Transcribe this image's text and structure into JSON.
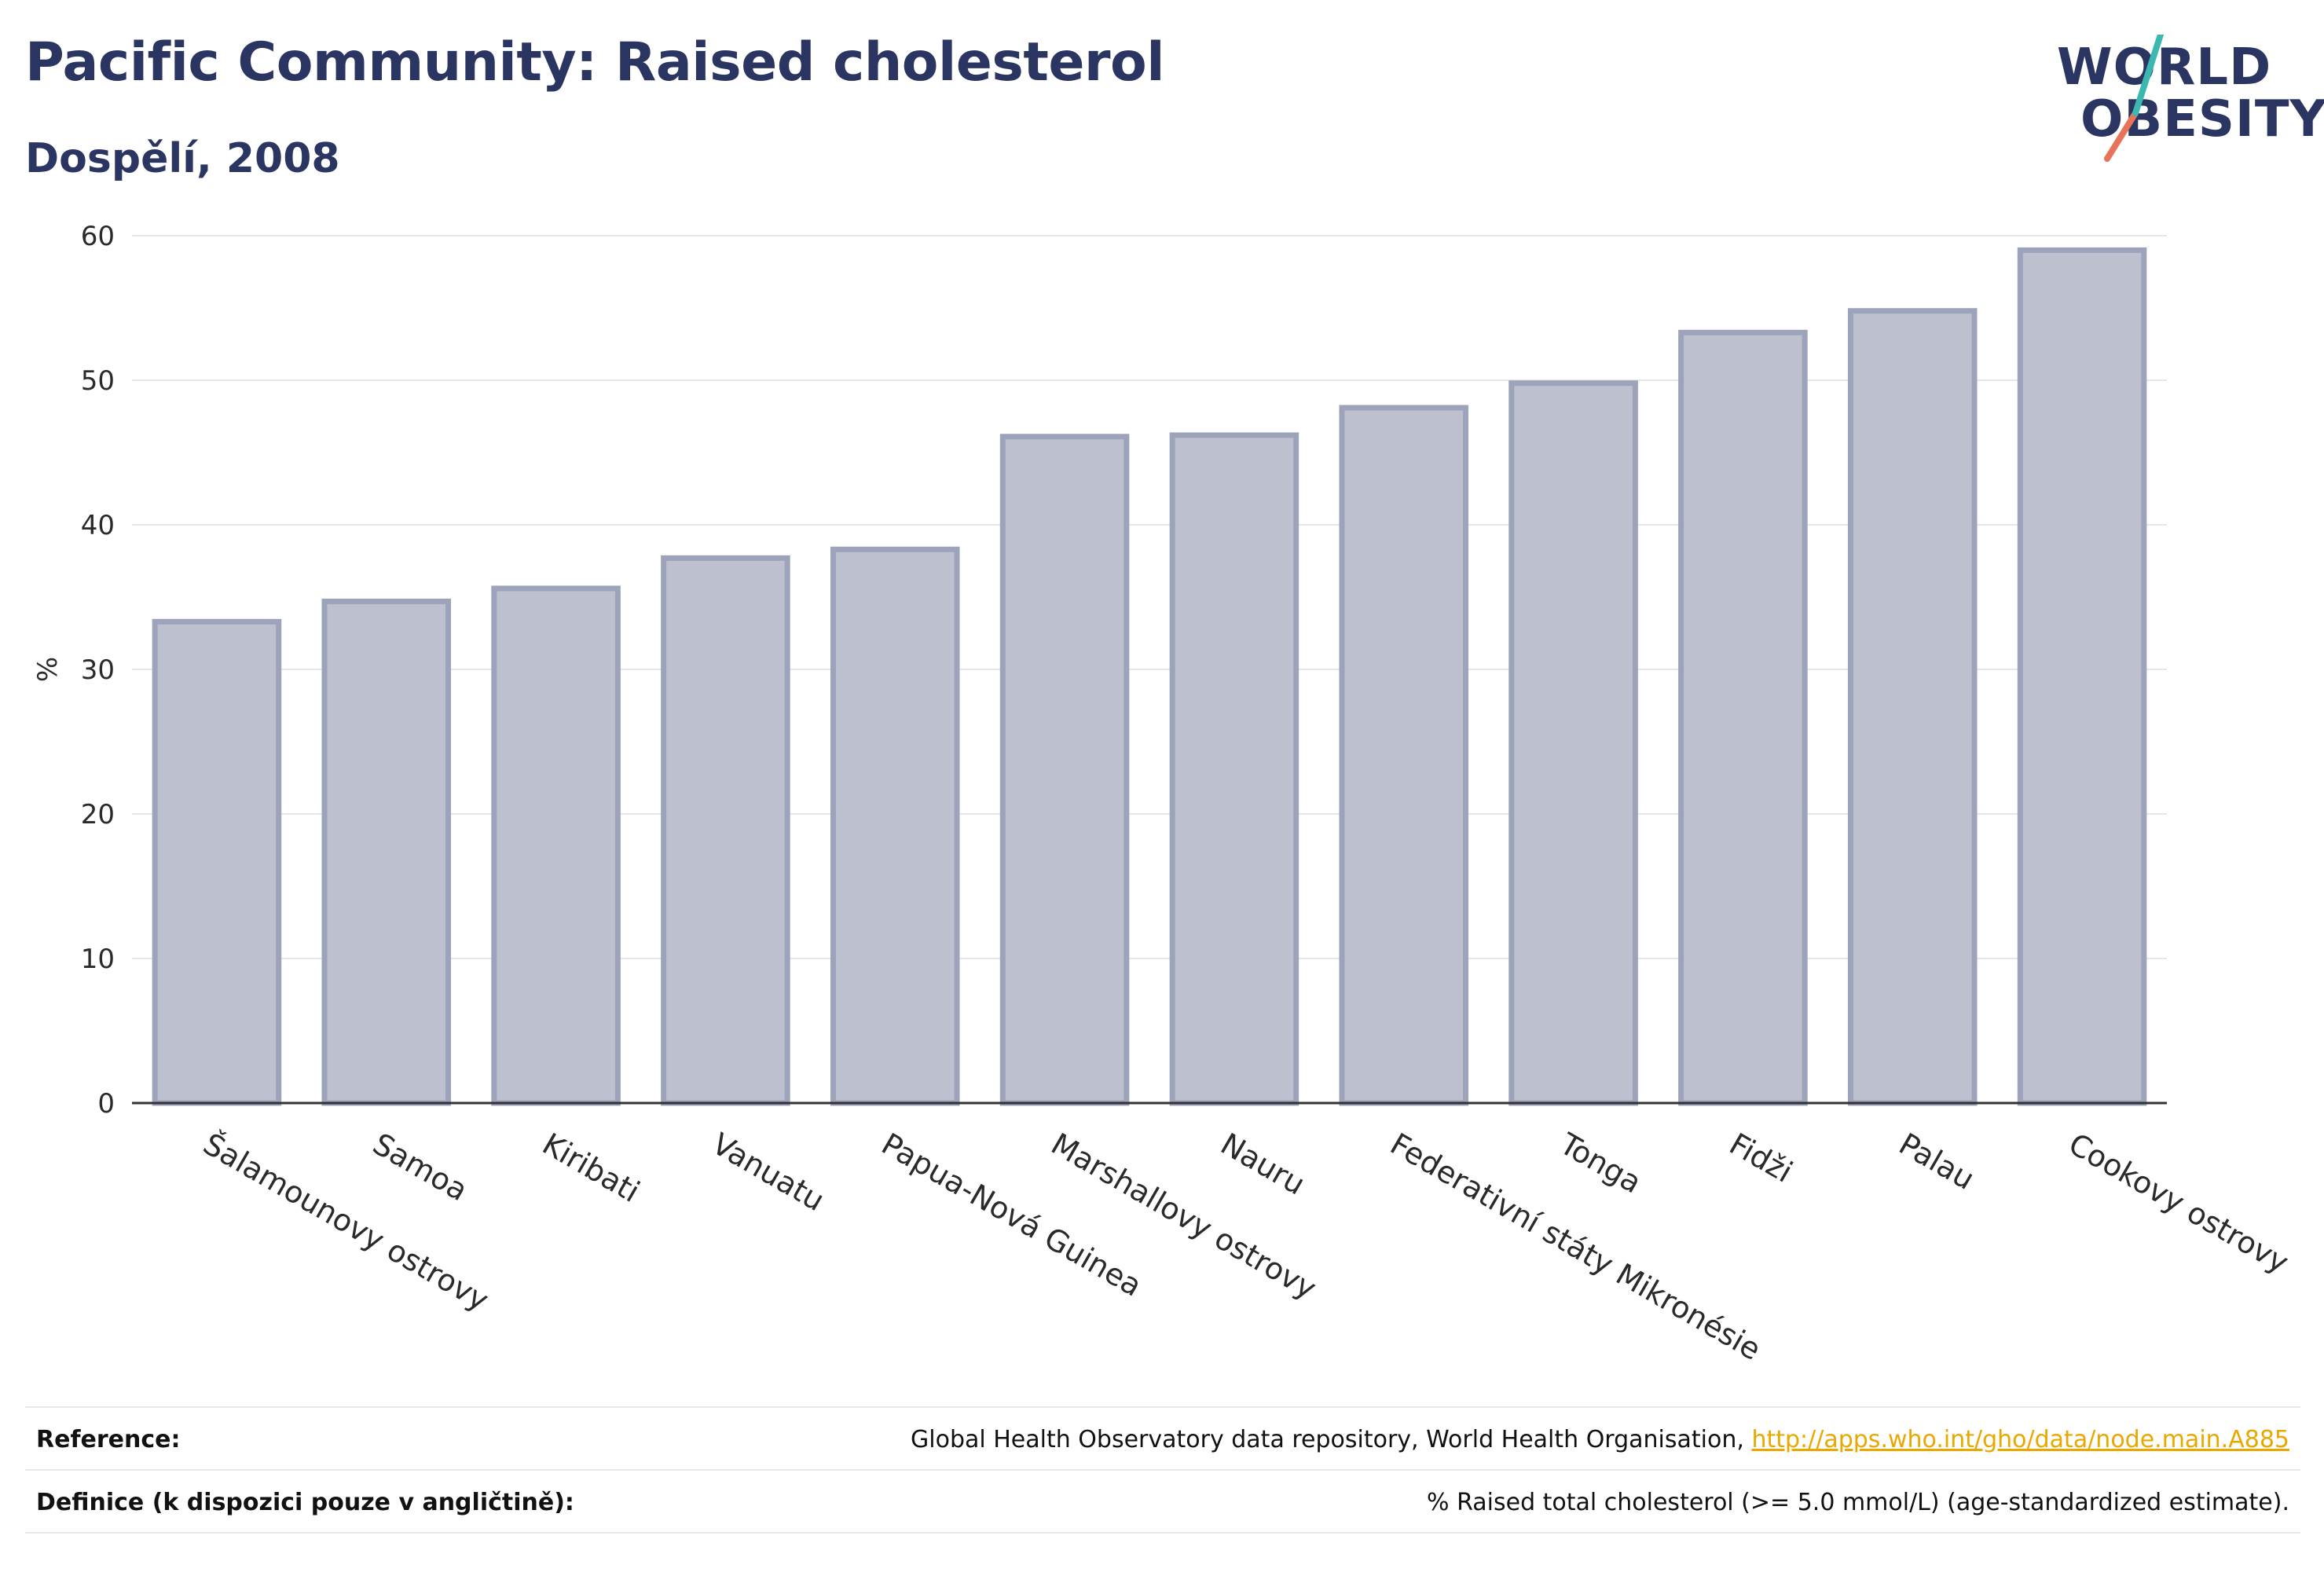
{
  "header": {
    "title": "Pacific Community: Raised cholesterol",
    "subtitle": "Dospělí, 2008"
  },
  "logo": {
    "line1": "WORLD",
    "line2": "OBESITY",
    "colors": {
      "text": "#2b3561",
      "slash_top": "#3bb9b0",
      "slash_bottom": "#e8735a"
    }
  },
  "chart_data": {
    "type": "bar",
    "title": "",
    "xlabel": "",
    "ylabel": "%",
    "ylim": [
      0,
      60
    ],
    "yticks": [
      0,
      10,
      20,
      30,
      40,
      50,
      60
    ],
    "grid": true,
    "categories": [
      "Šalamounovy ostrovy",
      "Samoa",
      "Kiribati",
      "Vanuatu",
      "Papua-Nová Guinea",
      "Marshallovy ostrovy",
      "Nauru",
      "Federativní státy Mikronésie",
      "Tonga",
      "Fidži",
      "Palau",
      "Cookovy ostrovy"
    ],
    "values": [
      33.3,
      34.7,
      35.6,
      37.7,
      38.3,
      46.1,
      46.2,
      48.1,
      49.8,
      53.3,
      54.8,
      59.0
    ],
    "colors": {
      "bar_fill": "#bcc0cf",
      "bar_stroke": "#9da3bb",
      "grid": "#e4e6ee",
      "axis": "#333333"
    }
  },
  "footer": {
    "reference_label": "Reference:",
    "reference_text": "Global Health Observatory data repository, World Health Organisation, ",
    "reference_link": "http://apps.who.int/gho/data/node.main.A885",
    "definition_label": "Definice (k dispozici pouze v angličtině):",
    "definition_text": "% Raised total cholesterol (>= 5.0 mmol/L) (age-standardized estimate)."
  }
}
